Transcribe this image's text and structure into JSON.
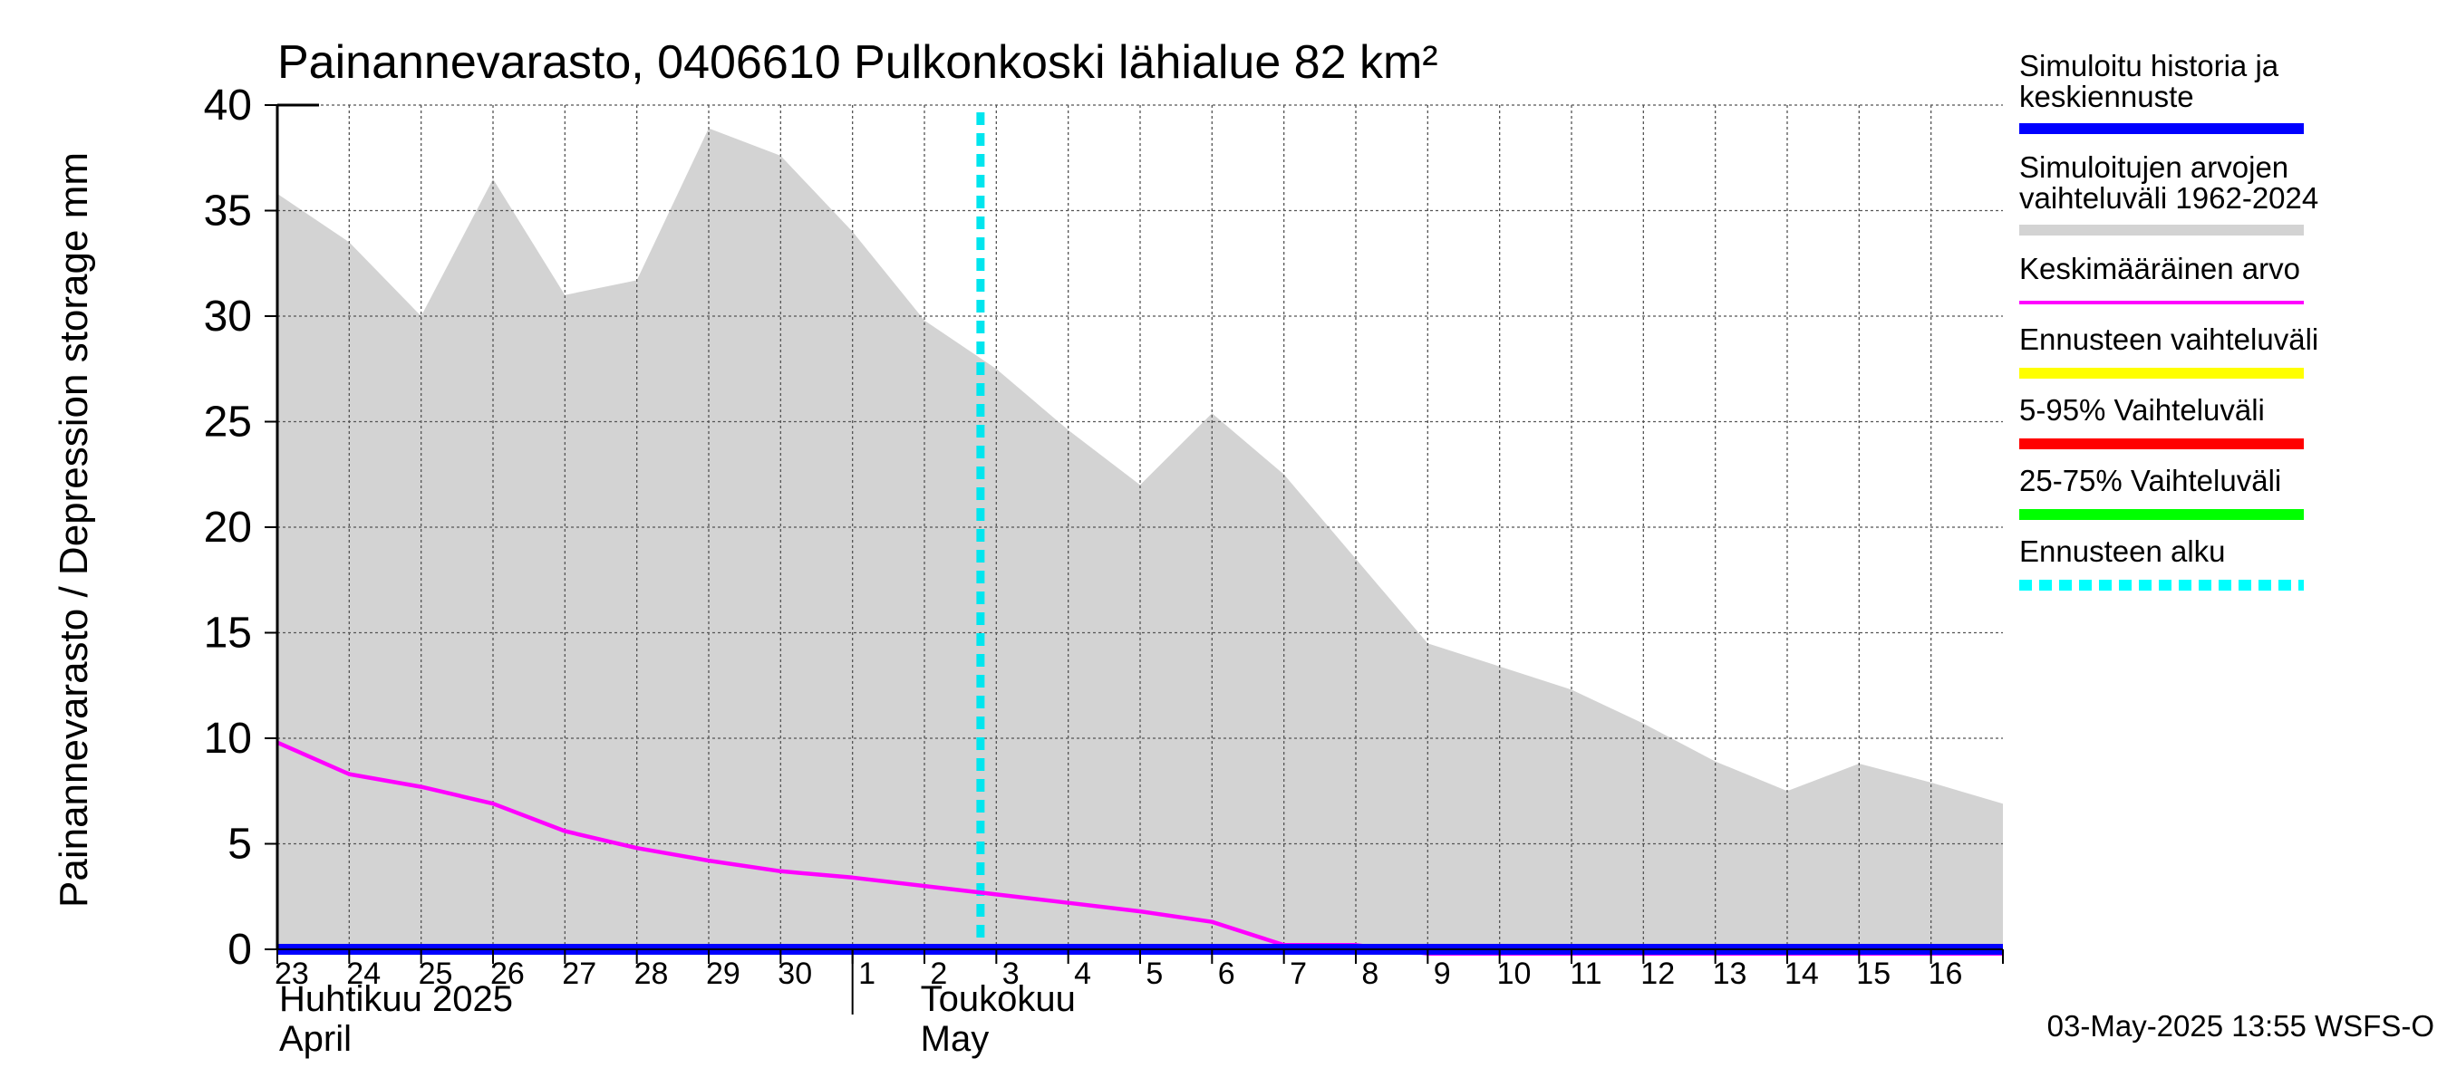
{
  "chart_data": {
    "type": "area",
    "title": "Painannevarasto, 0406610 Pulkonkoski lähialue 82 km²",
    "ylabel": "Painannevarasto / Depression storage    mm",
    "ylim": [
      0,
      40
    ],
    "yticks": [
      "0",
      "5",
      "10",
      "15",
      "20",
      "25",
      "30",
      "35",
      "40"
    ],
    "grid": true,
    "legend_position": "right",
    "x_start": "2025-04-23",
    "x_end": "2025-05-17",
    "x_tick_labels": [
      "23",
      "24",
      "25",
      "26",
      "27",
      "28",
      "29",
      "30",
      "1",
      "2",
      "3",
      "4",
      "5",
      "6",
      "7",
      "8",
      "9",
      "10",
      "11",
      "12",
      "13",
      "14",
      "15",
      "16"
    ],
    "month_labels": [
      {
        "line1": "Huhtikuu  2025",
        "line2": "April"
      },
      {
        "line1": "Toukokuu",
        "line2": "May"
      }
    ],
    "forecast_start": "2025-05-03",
    "series": [
      {
        "name": "Simuloitujen arvojen vaihteluväli 1962-2024",
        "kind": "band",
        "color": "#d3d3d3",
        "x": [
          "2025-04-23",
          "2025-04-24",
          "2025-04-25",
          "2025-04-26",
          "2025-04-27",
          "2025-04-28",
          "2025-04-29",
          "2025-04-30",
          "2025-05-01",
          "2025-05-02",
          "2025-05-03",
          "2025-05-04",
          "2025-05-05",
          "2025-05-06",
          "2025-05-07",
          "2025-05-08",
          "2025-05-09",
          "2025-05-10",
          "2025-05-11",
          "2025-05-12",
          "2025-05-13",
          "2025-05-14",
          "2025-05-15",
          "2025-05-16",
          "2025-05-17"
        ],
        "lower": [
          0,
          0,
          0,
          0,
          0,
          0,
          0,
          0,
          0,
          0,
          0,
          0,
          0,
          0,
          0,
          0,
          0,
          0,
          0,
          0,
          0,
          0,
          0,
          0,
          0
        ],
        "upper": [
          35.8,
          33.5,
          30.0,
          36.5,
          31.0,
          31.7,
          38.9,
          37.6,
          34.0,
          29.8,
          27.5,
          24.6,
          22.0,
          25.4,
          22.5,
          18.5,
          14.5,
          13.4,
          12.3,
          10.7,
          8.9,
          7.5,
          8.8,
          7.9,
          6.9
        ]
      },
      {
        "name": "Keskimääräinen arvo",
        "kind": "line",
        "color": "#ff00ff",
        "x": [
          "2025-04-23",
          "2025-04-24",
          "2025-04-25",
          "2025-04-26",
          "2025-04-27",
          "2025-04-28",
          "2025-04-29",
          "2025-04-30",
          "2025-05-01",
          "2025-05-02",
          "2025-05-03",
          "2025-05-04",
          "2025-05-05",
          "2025-05-06",
          "2025-05-07",
          "2025-05-08",
          "2025-05-09",
          "2025-05-10",
          "2025-05-11",
          "2025-05-12",
          "2025-05-13",
          "2025-05-14",
          "2025-05-15",
          "2025-05-16",
          "2025-05-17"
        ],
        "values": [
          9.8,
          8.3,
          7.7,
          6.9,
          5.6,
          4.8,
          4.2,
          3.7,
          3.4,
          3.0,
          2.6,
          2.2,
          1.8,
          1.3,
          0.2,
          0.2,
          -0.2,
          -0.2,
          -0.2,
          -0.2,
          -0.2,
          -0.2,
          -0.2,
          -0.2,
          -0.2
        ]
      },
      {
        "name": "Simuloitu historia ja keskiennuste",
        "kind": "line",
        "color": "#0000ff",
        "x": [
          "2025-04-23",
          "2025-05-17"
        ],
        "values": [
          0,
          0
        ]
      }
    ]
  },
  "legend": [
    {
      "line1": "Simuloitu historia ja",
      "line2": "keskiennuste",
      "color": "#0000ff",
      "style": "solid"
    },
    {
      "line1": "Simuloitujen arvojen",
      "line2": "vaihteluväli 1962-2024",
      "color": "#d3d3d3",
      "style": "solid"
    },
    {
      "line1": "Keskimääräinen arvo",
      "line2": "",
      "color": "#ff00ff",
      "style": "thin"
    },
    {
      "line1": "Ennusteen vaihteluväli",
      "line2": "",
      "color": "#ffff00",
      "style": "solid"
    },
    {
      "line1": "5-95% Vaihteluväli",
      "line2": "",
      "color": "#ff0000",
      "style": "solid"
    },
    {
      "line1": "25-75% Vaihteluväli",
      "line2": "",
      "color": "#00ff00",
      "style": "solid"
    },
    {
      "line1": "Ennusteen alku",
      "line2": "",
      "color": "#00ffff",
      "style": "dashed"
    }
  ],
  "timestamp": "03-May-2025 13:55 WSFS-O"
}
